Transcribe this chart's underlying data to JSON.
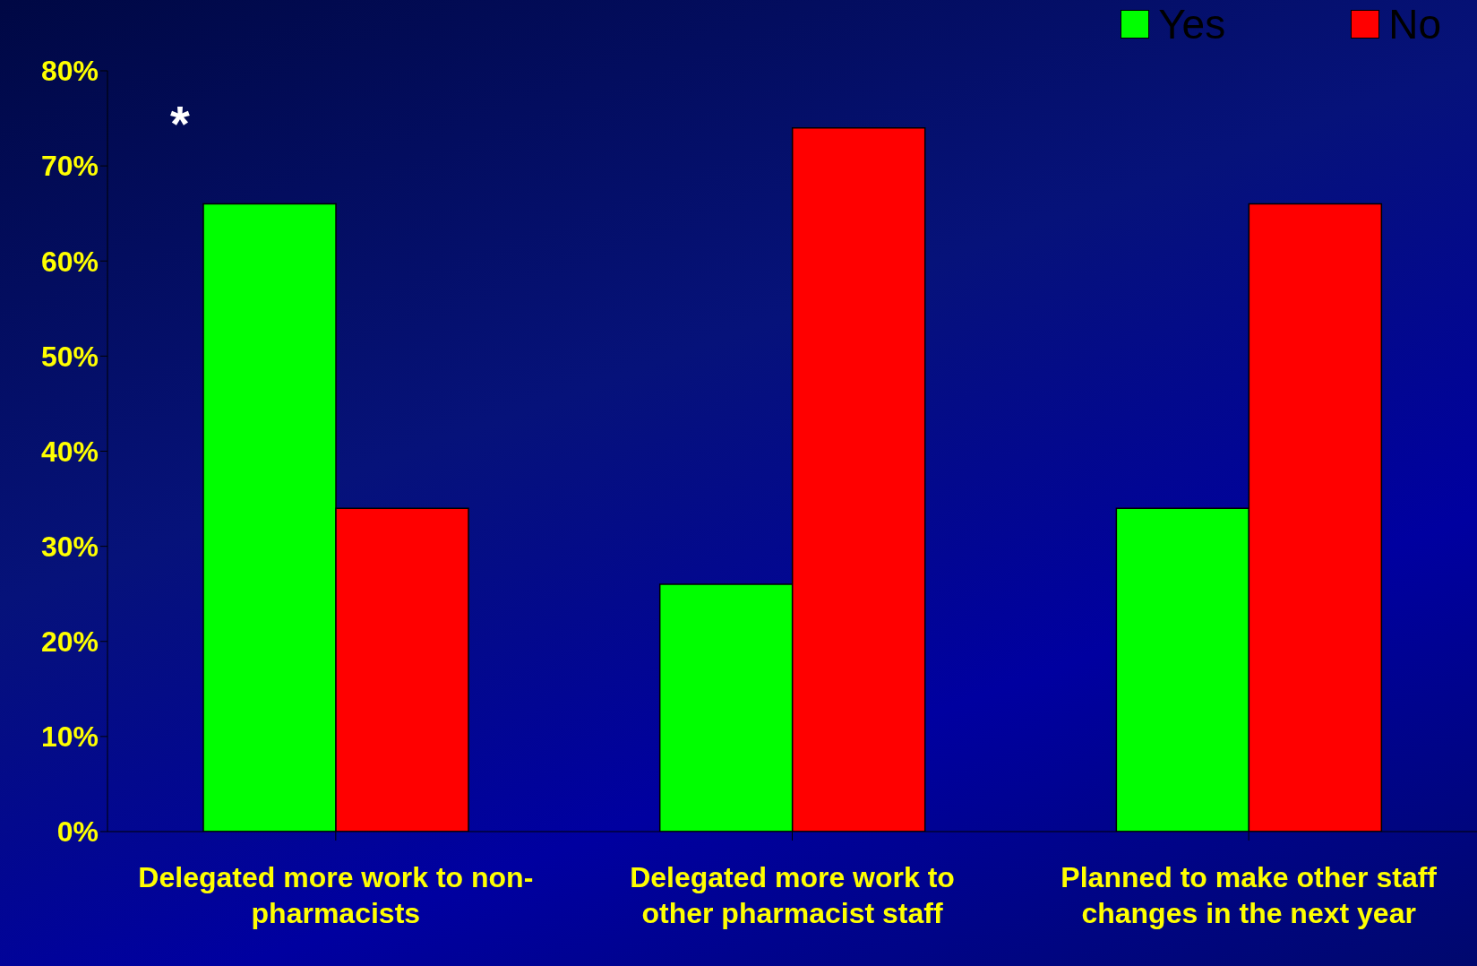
{
  "chart_data": {
    "type": "bar",
    "categories": [
      "Delegated more work to non-pharmacists",
      "Delegated more work to other pharmacist staff",
      "Planned to make other staff changes in the next year"
    ],
    "series": [
      {
        "name": "Yes",
        "color": "#00ff00",
        "values": [
          66,
          26,
          34
        ]
      },
      {
        "name": "No",
        "color": "#ff0000",
        "values": [
          34,
          74,
          66
        ]
      }
    ],
    "ylim": [
      0,
      80
    ],
    "yticks": [
      {
        "value": 0,
        "label": "0%"
      },
      {
        "value": 10,
        "label": "10%"
      },
      {
        "value": 20,
        "label": "20%"
      },
      {
        "value": 30,
        "label": "30%"
      },
      {
        "value": 40,
        "label": "40%"
      },
      {
        "value": 50,
        "label": "50%"
      },
      {
        "value": 60,
        "label": "60%"
      },
      {
        "value": 70,
        "label": "70%"
      },
      {
        "value": 80,
        "label": "80%"
      }
    ],
    "grid": false,
    "legend": "top right",
    "annotations": [
      "*"
    ]
  }
}
